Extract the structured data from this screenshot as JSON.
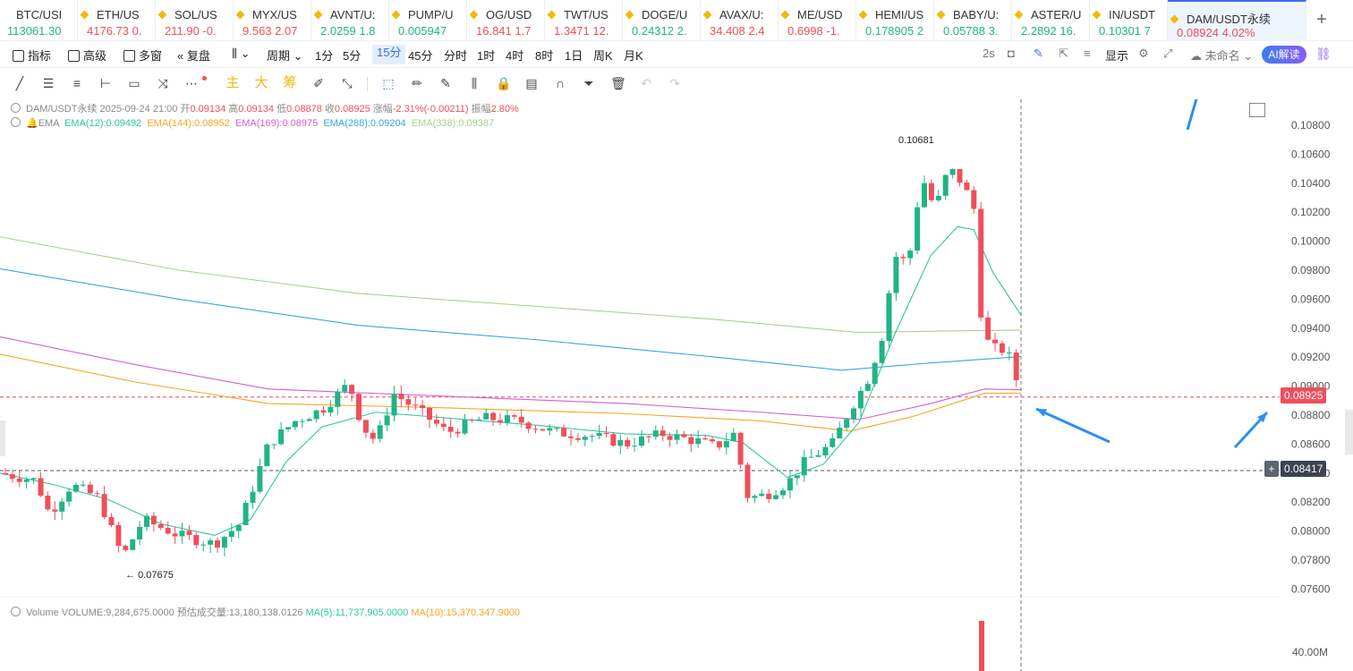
{
  "tickers": [
    {
      "symbol": "BTC/USI",
      "price": "113061.30",
      "change": "",
      "dir": "up"
    },
    {
      "symbol": "ETH/US",
      "price": "4176.73",
      "change": "0.",
      "dir": "down"
    },
    {
      "symbol": "SOL/US",
      "price": "211.90",
      "change": "-0.",
      "dir": "down"
    },
    {
      "symbol": "MYX/US",
      "price": "9.563",
      "change": "2.07",
      "dir": "down"
    },
    {
      "symbol": "AVNT/U:",
      "price": "2.0259",
      "change": "1.8",
      "dir": "up"
    },
    {
      "symbol": "PUMP/U",
      "price": "0.005947",
      "change": "",
      "dir": "up"
    },
    {
      "symbol": "OG/USD",
      "price": "16.841",
      "change": "1.7",
      "dir": "down"
    },
    {
      "symbol": "TWT/US",
      "price": "1.3471",
      "change": "12.",
      "dir": "down"
    },
    {
      "symbol": "DOGE/U",
      "price": "0.24312",
      "change": "2.",
      "dir": "up"
    },
    {
      "symbol": "AVAX/U:",
      "price": "34.408",
      "change": "2.4",
      "dir": "down"
    },
    {
      "symbol": "ME/USD",
      "price": "0.6998",
      "change": "-1.",
      "dir": "down"
    },
    {
      "symbol": "HEMI/US",
      "price": "0.178905",
      "change": "2",
      "dir": "up"
    },
    {
      "symbol": "BABY/U:",
      "price": "0.05788",
      "change": "3.",
      "dir": "up"
    },
    {
      "symbol": "ASTER/U",
      "price": "2.2892",
      "change": "16.",
      "dir": "up"
    },
    {
      "symbol": "IN/USDT",
      "price": "0.10301",
      "change": "7",
      "dir": "up"
    },
    {
      "symbol": "DAM/USDT永续",
      "price": "0.08924",
      "change": "4.02%",
      "dir": "down"
    }
  ],
  "toolbar": {
    "indicator": "指标",
    "advanced": "高级",
    "multi_window": "多窗",
    "replay": "复盘",
    "period": "周期",
    "intervals": [
      "1分",
      "5分",
      "15分",
      "45分",
      "分时",
      "1时",
      "4时",
      "8时",
      "1日",
      "周K",
      "月K"
    ],
    "selected_interval": "15分",
    "refresh": "2s",
    "display": "显示",
    "unnamed": "未命名",
    "ai": "AI解读"
  },
  "drawing_tools": {
    "main": "主",
    "big": "大",
    "chips": "筹"
  },
  "legend": {
    "pair": "DAM/USDT永续",
    "datetime": "2025-09-24 21:00",
    "open_label": "开",
    "open": "0.09134",
    "high_label": "高",
    "high": "0.09134",
    "low_label": "低",
    "low": "0.08878",
    "close_label": "收",
    "close": "0.08925",
    "change_label": "涨幅",
    "change": "-2.31%(-0.00211)",
    "amp_label": "振幅",
    "amp": "2.80%",
    "ema_title": "EMA",
    "ema12": "EMA(12):0.09492",
    "ema144": "EMA(144):0.08952",
    "ema169": "EMA(169):0.08975",
    "ema288": "EMA(288):0.09204",
    "ema338": "EMA(338):0.09387",
    "volume_title": "Volume",
    "volume": "VOLUME:9,284,675.0000",
    "est_volume": "预估成交量:13,180,138.0126",
    "ma5": "MA(5):11,737,905.0000",
    "ma10": "MA(10):15,370,347.9000"
  },
  "colors": {
    "up": "#20b486",
    "down": "#ef4f5b",
    "ema12": "#2ec7a0",
    "ema144": "#f5a623",
    "ema169": "#d35fd0",
    "ema288": "#35a8e0",
    "ema338": "#a8d08d"
  },
  "price_axis": [
    "0.10800",
    "0.10600",
    "0.10400",
    "0.10200",
    "0.10000",
    "0.09800",
    "0.09600",
    "0.09400",
    "0.09200",
    "0.09000",
    "0.08800",
    "0.08600",
    "0.08400",
    "0.08200",
    "0.08000",
    "0.07800",
    "0.07600"
  ],
  "last_price_tag": "0.08925",
  "crosshair_tag": "0.08417",
  "high_marker": "0.10681",
  "low_marker": "0.07675",
  "volume_axis": "40.00M"
}
